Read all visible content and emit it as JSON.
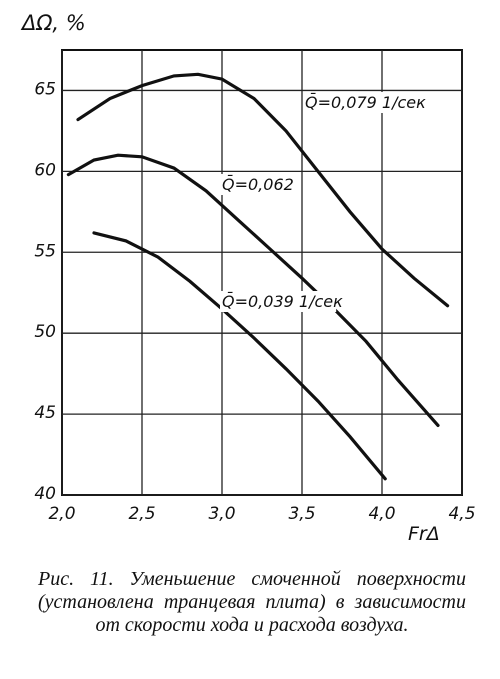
{
  "chart_data": {
    "type": "line",
    "y_label": "ΔΩ, %",
    "x_label": "FrΔ",
    "caption": "Рис. 11. Уменьшение смоченной поверхности (установлена транцевая плита) в зависимости от скорости хода и расхода воздуха.",
    "xlim": [
      2.0,
      4.5
    ],
    "ylim": [
      40,
      67.5
    ],
    "xticks": [
      {
        "value": 2.0,
        "label": "2,0"
      },
      {
        "value": 2.5,
        "label": "2,5"
      },
      {
        "value": 3.0,
        "label": "3,0"
      },
      {
        "value": 3.5,
        "label": "3,5"
      },
      {
        "value": 4.0,
        "label": "4,0"
      },
      {
        "value": 4.5,
        "label": "4,5"
      }
    ],
    "yticks": [
      40,
      45,
      50,
      55,
      60,
      65
    ],
    "grid": true,
    "series": [
      {
        "name": "Q̄=0,079 1/сек",
        "color": "#111111",
        "x": [
          2.1,
          2.3,
          2.5,
          2.7,
          2.85,
          3.0,
          3.2,
          3.4,
          3.6,
          3.8,
          4.0,
          4.2,
          4.41
        ],
        "values": [
          63.2,
          64.5,
          65.3,
          65.9,
          66.0,
          65.7,
          64.5,
          62.5,
          60.0,
          57.5,
          55.2,
          53.4,
          51.7
        ]
      },
      {
        "name": "Q̄=0,062",
        "color": "#111111",
        "x": [
          2.04,
          2.2,
          2.35,
          2.5,
          2.7,
          2.9,
          3.1,
          3.3,
          3.5,
          3.7,
          3.9,
          4.1,
          4.35
        ],
        "values": [
          59.8,
          60.7,
          61.0,
          60.9,
          60.2,
          58.8,
          57.0,
          55.2,
          53.4,
          51.5,
          49.5,
          47.1,
          44.3
        ]
      },
      {
        "name": "Q̄=0,039 1/сек",
        "color": "#111111",
        "x": [
          2.2,
          2.4,
          2.6,
          2.8,
          3.0,
          3.2,
          3.4,
          3.6,
          3.8,
          4.02
        ],
        "values": [
          56.2,
          55.7,
          54.7,
          53.2,
          51.5,
          49.7,
          47.8,
          45.8,
          43.6,
          41.0
        ]
      }
    ]
  }
}
